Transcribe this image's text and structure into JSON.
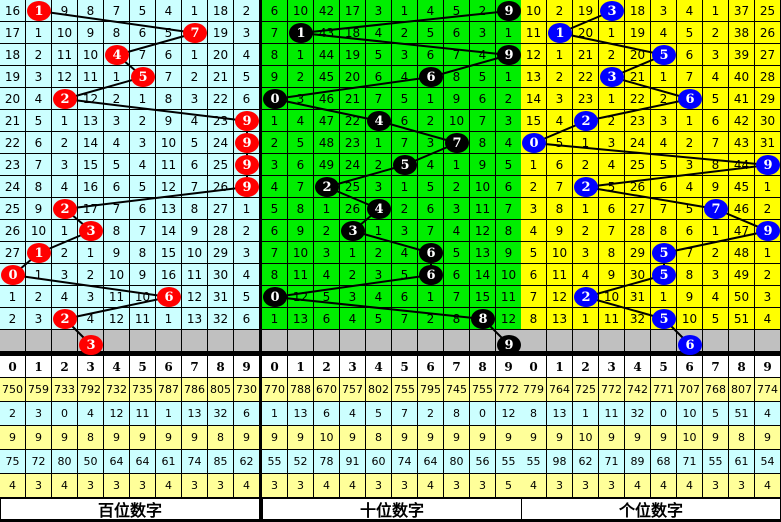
{
  "panels": [
    {
      "title": "百位数字",
      "bg": "#ccffff",
      "ball_color": "#ff0000",
      "rows": [
        [
          16,
          null,
          9,
          8,
          7,
          5,
          4,
          1,
          18,
          2
        ],
        [
          17,
          1,
          10,
          9,
          8,
          6,
          5,
          null,
          19,
          3
        ],
        [
          18,
          2,
          11,
          10,
          null,
          7,
          6,
          1,
          20,
          4
        ],
        [
          19,
          3,
          12,
          11,
          1,
          null,
          7,
          2,
          21,
          5
        ],
        [
          20,
          4,
          null,
          12,
          2,
          1,
          8,
          3,
          22,
          6
        ],
        [
          21,
          5,
          1,
          13,
          3,
          2,
          9,
          4,
          23,
          null
        ],
        [
          22,
          6,
          2,
          14,
          4,
          3,
          10,
          5,
          24,
          null
        ],
        [
          23,
          7,
          3,
          15,
          5,
          4,
          11,
          6,
          25,
          null
        ],
        [
          24,
          8,
          4,
          16,
          6,
          5,
          12,
          7,
          26,
          null
        ],
        [
          25,
          9,
          null,
          17,
          7,
          6,
          13,
          8,
          27,
          1
        ],
        [
          26,
          10,
          1,
          null,
          8,
          7,
          14,
          9,
          28,
          2
        ],
        [
          27,
          null,
          2,
          1,
          9,
          8,
          15,
          10,
          29,
          3
        ],
        [
          null,
          1,
          3,
          2,
          10,
          9,
          16,
          11,
          30,
          4
        ],
        [
          1,
          2,
          4,
          3,
          11,
          10,
          null,
          12,
          31,
          5
        ],
        [
          2,
          3,
          null,
          4,
          12,
          11,
          1,
          13,
          32,
          6
        ]
      ],
      "draws": [
        1,
        7,
        4,
        5,
        2,
        9,
        9,
        9,
        9,
        2,
        3,
        1,
        0,
        6,
        2
      ],
      "next": 3,
      "stats": [
        [
          750,
          759,
          733,
          792,
          732,
          735,
          787,
          786,
          805,
          730
        ],
        [
          2,
          3,
          0,
          4,
          12,
          11,
          1,
          13,
          32,
          6
        ],
        [
          9,
          9,
          9,
          8,
          9,
          9,
          9,
          9,
          8,
          9
        ],
        [
          75,
          72,
          80,
          50,
          64,
          64,
          61,
          74,
          85,
          62
        ],
        [
          4,
          3,
          4,
          3,
          3,
          3,
          4,
          3,
          3,
          4
        ]
      ]
    },
    {
      "title": "十位数字",
      "bg": "#00ee00",
      "ball_color": "#000000",
      "rows": [
        [
          6,
          10,
          42,
          17,
          3,
          1,
          4,
          5,
          2,
          null
        ],
        [
          7,
          null,
          43,
          18,
          4,
          2,
          5,
          6,
          3,
          1
        ],
        [
          8,
          1,
          44,
          19,
          5,
          3,
          6,
          7,
          4,
          null
        ],
        [
          9,
          2,
          45,
          20,
          6,
          4,
          null,
          8,
          5,
          1
        ],
        [
          null,
          3,
          46,
          21,
          7,
          5,
          1,
          9,
          6,
          2
        ],
        [
          1,
          4,
          47,
          22,
          null,
          6,
          2,
          10,
          7,
          3
        ],
        [
          2,
          5,
          48,
          23,
          1,
          7,
          3,
          null,
          8,
          4
        ],
        [
          3,
          6,
          49,
          24,
          2,
          null,
          4,
          1,
          9,
          5
        ],
        [
          4,
          7,
          null,
          25,
          3,
          1,
          5,
          2,
          10,
          6
        ],
        [
          5,
          8,
          1,
          26,
          null,
          2,
          6,
          3,
          11,
          7
        ],
        [
          6,
          9,
          2,
          null,
          1,
          3,
          7,
          4,
          12,
          8
        ],
        [
          7,
          10,
          3,
          1,
          2,
          4,
          null,
          5,
          13,
          9
        ],
        [
          8,
          11,
          4,
          2,
          3,
          5,
          null,
          6,
          14,
          10
        ],
        [
          null,
          12,
          5,
          3,
          4,
          6,
          1,
          7,
          15,
          11
        ],
        [
          1,
          13,
          6,
          4,
          5,
          7,
          2,
          8,
          null,
          12
        ]
      ],
      "draws": [
        9,
        1,
        9,
        6,
        0,
        4,
        7,
        5,
        2,
        4,
        3,
        6,
        6,
        0,
        8
      ],
      "next": 9,
      "stats": [
        [
          770,
          788,
          670,
          757,
          802,
          755,
          795,
          745,
          755,
          772
        ],
        [
          1,
          13,
          6,
          4,
          5,
          7,
          2,
          8,
          0,
          12
        ],
        [
          9,
          9,
          10,
          9,
          8,
          9,
          9,
          9,
          9,
          9
        ],
        [
          55,
          52,
          78,
          91,
          60,
          74,
          64,
          80,
          56,
          55
        ],
        [
          3,
          3,
          4,
          4,
          3,
          3,
          4,
          3,
          3,
          5
        ]
      ]
    },
    {
      "title": "个位数字",
      "bg": "#ffff00",
      "ball_color": "#0000ff",
      "rows": [
        [
          10,
          2,
          19,
          null,
          18,
          3,
          4,
          1,
          37,
          25
        ],
        [
          11,
          null,
          20,
          1,
          19,
          4,
          5,
          2,
          38,
          26
        ],
        [
          12,
          1,
          21,
          2,
          20,
          null,
          6,
          3,
          39,
          27
        ],
        [
          13,
          2,
          22,
          null,
          21,
          1,
          7,
          4,
          40,
          28
        ],
        [
          14,
          3,
          23,
          1,
          22,
          2,
          null,
          5,
          41,
          29
        ],
        [
          15,
          4,
          null,
          2,
          23,
          3,
          1,
          6,
          42,
          30
        ],
        [
          null,
          5,
          1,
          3,
          24,
          4,
          2,
          7,
          43,
          31
        ],
        [
          1,
          6,
          2,
          4,
          25,
          5,
          3,
          8,
          44,
          null
        ],
        [
          2,
          7,
          null,
          5,
          26,
          6,
          4,
          9,
          45,
          1
        ],
        [
          3,
          8,
          1,
          6,
          27,
          7,
          5,
          null,
          46,
          2
        ],
        [
          4,
          9,
          2,
          7,
          28,
          8,
          6,
          1,
          47,
          null
        ],
        [
          5,
          10,
          3,
          8,
          29,
          null,
          7,
          2,
          48,
          1
        ],
        [
          6,
          11,
          4,
          9,
          30,
          null,
          8,
          3,
          49,
          2
        ],
        [
          7,
          12,
          null,
          10,
          31,
          1,
          9,
          4,
          50,
          3
        ],
        [
          8,
          13,
          1,
          11,
          32,
          null,
          10,
          5,
          51,
          4
        ]
      ],
      "draws": [
        3,
        1,
        5,
        3,
        6,
        2,
        0,
        9,
        2,
        7,
        9,
        5,
        5,
        2,
        5
      ],
      "next": 6,
      "stats": [
        [
          779,
          764,
          725,
          772,
          742,
          771,
          707,
          768,
          807,
          774
        ],
        [
          8,
          13,
          1,
          11,
          32,
          0,
          10,
          5,
          51,
          4
        ],
        [
          9,
          9,
          10,
          9,
          9,
          9,
          10,
          9,
          8,
          9
        ],
        [
          55,
          98,
          62,
          71,
          89,
          68,
          71,
          55,
          61,
          54
        ],
        [
          4,
          3,
          3,
          3,
          4,
          4,
          4,
          3,
          3,
          4
        ]
      ]
    }
  ],
  "digits": [
    "0",
    "1",
    "2",
    "3",
    "4",
    "5",
    "6",
    "7",
    "8",
    "9"
  ],
  "colors": {
    "stat_yellow": "#ffff99",
    "stat_cyan": "#ccffff",
    "gray_row": "#c0c0c0"
  }
}
